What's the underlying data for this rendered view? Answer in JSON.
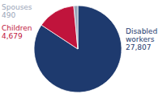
{
  "chart_data": {
    "type": "pie",
    "categories": [
      "Disabled workers",
      "Children",
      "Spouses"
    ],
    "values": [
      27807,
      4679,
      490
    ],
    "value_labels": [
      "27,807",
      "4,679",
      "490"
    ],
    "colors": [
      "#1e3a6e",
      "#c0143c",
      "#9aa5b8"
    ],
    "data_labels": true
  }
}
